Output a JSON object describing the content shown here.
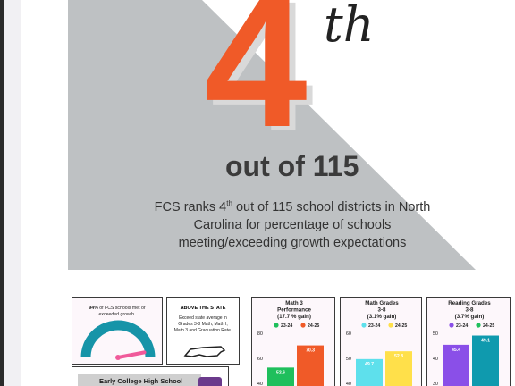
{
  "hero": {
    "rank": "4",
    "rank_suffix": "th",
    "out_of": "out of 115",
    "caption_pre": "FCS ranks 4",
    "caption_sup": "th",
    "caption_post": " out of 115 school districts in North Carolina for percentage of schools meeting/exceeding growth expectations"
  },
  "growth_card": {
    "pct": "94%",
    "text": " of FCS schools met or exceeded growth.",
    "value": 0.94
  },
  "state_card": {
    "heading": "ABOVE THE STATE",
    "body": "Exceed state average in Grades 3-8 Math, Math I, Math 3 and Graduation Rate."
  },
  "ech_card": {
    "title": "Early College High School"
  },
  "legend": {
    "a": "23-24",
    "b": "24-25"
  },
  "chart_data": [
    {
      "type": "bar",
      "title_lines": [
        "Math 3",
        "Performance",
        "(17.7 % gain)"
      ],
      "categories": [
        "23-24",
        "24-25"
      ],
      "values": [
        52.6,
        70.3
      ],
      "value_labels": [
        "52.6",
        "70.3"
      ],
      "ticks": [
        "80",
        "60",
        "40"
      ],
      "tick_values": [
        80,
        60,
        40
      ],
      "ylim": [
        40,
        80
      ],
      "colors": [
        "#1fbf5c",
        "#f05a28"
      ],
      "legend_colors": [
        "#1fbf5c",
        "#f05a28"
      ]
    },
    {
      "type": "bar",
      "title_lines": [
        "Math Grades",
        "3-8",
        "(3.1% gain)"
      ],
      "categories": [
        "23-24",
        "24-25"
      ],
      "values": [
        49.7,
        52.8
      ],
      "value_labels": [
        "49.7",
        "52.8"
      ],
      "ticks": [
        "60",
        "50",
        "40"
      ],
      "tick_values": [
        60,
        50,
        40
      ],
      "ylim": [
        40,
        60
      ],
      "colors": [
        "#5ee0ec",
        "#ffe04a"
      ],
      "legend_colors": [
        "#5ee0ec",
        "#ffe04a"
      ]
    },
    {
      "type": "bar",
      "title_lines": [
        "Reading Grades",
        "3-8",
        "(3.7% gain)"
      ],
      "categories": [
        "23-24",
        "24-25"
      ],
      "values": [
        45.4,
        49.1
      ],
      "value_labels": [
        "45.4",
        "49.1"
      ],
      "ticks": [
        "50",
        "40",
        "30"
      ],
      "tick_values": [
        50,
        40,
        30
      ],
      "ylim": [
        30,
        50
      ],
      "colors": [
        "#8a4fe8",
        "#0f9aae"
      ],
      "legend_colors": [
        "#8a4fe8",
        "#1fbf5c"
      ]
    }
  ]
}
